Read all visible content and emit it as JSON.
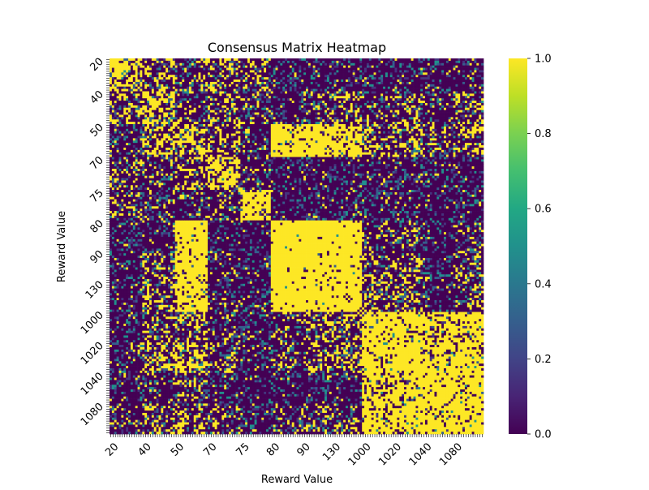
{
  "chart_data": {
    "type": "heatmap",
    "title": "Consensus Matrix Heatmap",
    "xlabel": "Reward Value",
    "ylabel": "Reward Value",
    "colormap": "viridis",
    "value_range": [
      0,
      1
    ],
    "colorbar_ticks": [
      "0.0",
      "0.2",
      "0.4",
      "0.6",
      "0.8",
      "1.0"
    ],
    "tick_labels": [
      "20",
      "40",
      "50",
      "70",
      "75",
      "80",
      "90",
      "130",
      "1000",
      "1020",
      "1040",
      "1080"
    ],
    "groups": [
      {
        "label": "20",
        "size": 14
      },
      {
        "label": "40",
        "size": 14
      },
      {
        "label": "50",
        "size": 14
      },
      {
        "label": "70",
        "size": 14
      },
      {
        "label": "75",
        "size": 13
      },
      {
        "label": "80",
        "size": 13
      },
      {
        "label": "90",
        "size": 13
      },
      {
        "label": "130",
        "size": 13
      },
      {
        "label": "1000",
        "size": 13
      },
      {
        "label": "1020",
        "size": 13
      },
      {
        "label": "1040",
        "size": 13
      },
      {
        "label": "1080",
        "size": 13
      }
    ],
    "block_means": [
      [
        0.55,
        0.3,
        0.2,
        0.3,
        0.25,
        0.05,
        0.05,
        0.05,
        0.05,
        0.05,
        0.05,
        0.05
      ],
      [
        0.3,
        0.5,
        0.15,
        0.3,
        0.2,
        0.05,
        0.15,
        0.25,
        0.1,
        0.25,
        0.1,
        0.2
      ],
      [
        0.1,
        0.4,
        0.45,
        0.3,
        0.1,
        0.85,
        0.85,
        0.75,
        0.3,
        0.3,
        0.2,
        0.3
      ],
      [
        0.2,
        0.15,
        0.3,
        0.6,
        0.1,
        0.05,
        0.05,
        0.05,
        0.05,
        0.05,
        0.05,
        0.05
      ],
      [
        0.2,
        0.1,
        0.1,
        0.15,
        0.7,
        0.05,
        0.05,
        0.05,
        0.05,
        0.05,
        0.05,
        0.05
      ],
      [
        0.05,
        0.05,
        0.9,
        0.05,
        0.05,
        0.95,
        0.95,
        0.95,
        0.15,
        0.15,
        0.05,
        0.15
      ],
      [
        0.05,
        0.2,
        0.85,
        0.1,
        0.05,
        0.95,
        0.9,
        0.9,
        0.2,
        0.25,
        0.05,
        0.2
      ],
      [
        0.05,
        0.3,
        0.8,
        0.1,
        0.05,
        0.95,
        0.9,
        0.9,
        0.25,
        0.3,
        0.05,
        0.25
      ],
      [
        0.05,
        0.2,
        0.3,
        0.1,
        0.05,
        0.15,
        0.25,
        0.3,
        0.8,
        0.8,
        0.7,
        0.8
      ],
      [
        0.1,
        0.35,
        0.5,
        0.2,
        0.05,
        0.15,
        0.25,
        0.35,
        0.8,
        0.9,
        0.75,
        0.8
      ],
      [
        0.05,
        0.1,
        0.2,
        0.05,
        0.05,
        0.05,
        0.05,
        0.05,
        0.7,
        0.75,
        0.9,
        0.85
      ],
      [
        0.1,
        0.2,
        0.3,
        0.2,
        0.05,
        0.15,
        0.2,
        0.25,
        0.8,
        0.8,
        0.85,
        0.85
      ]
    ],
    "diagonal_value": 1.0,
    "grid": false,
    "colorbar": "right"
  }
}
